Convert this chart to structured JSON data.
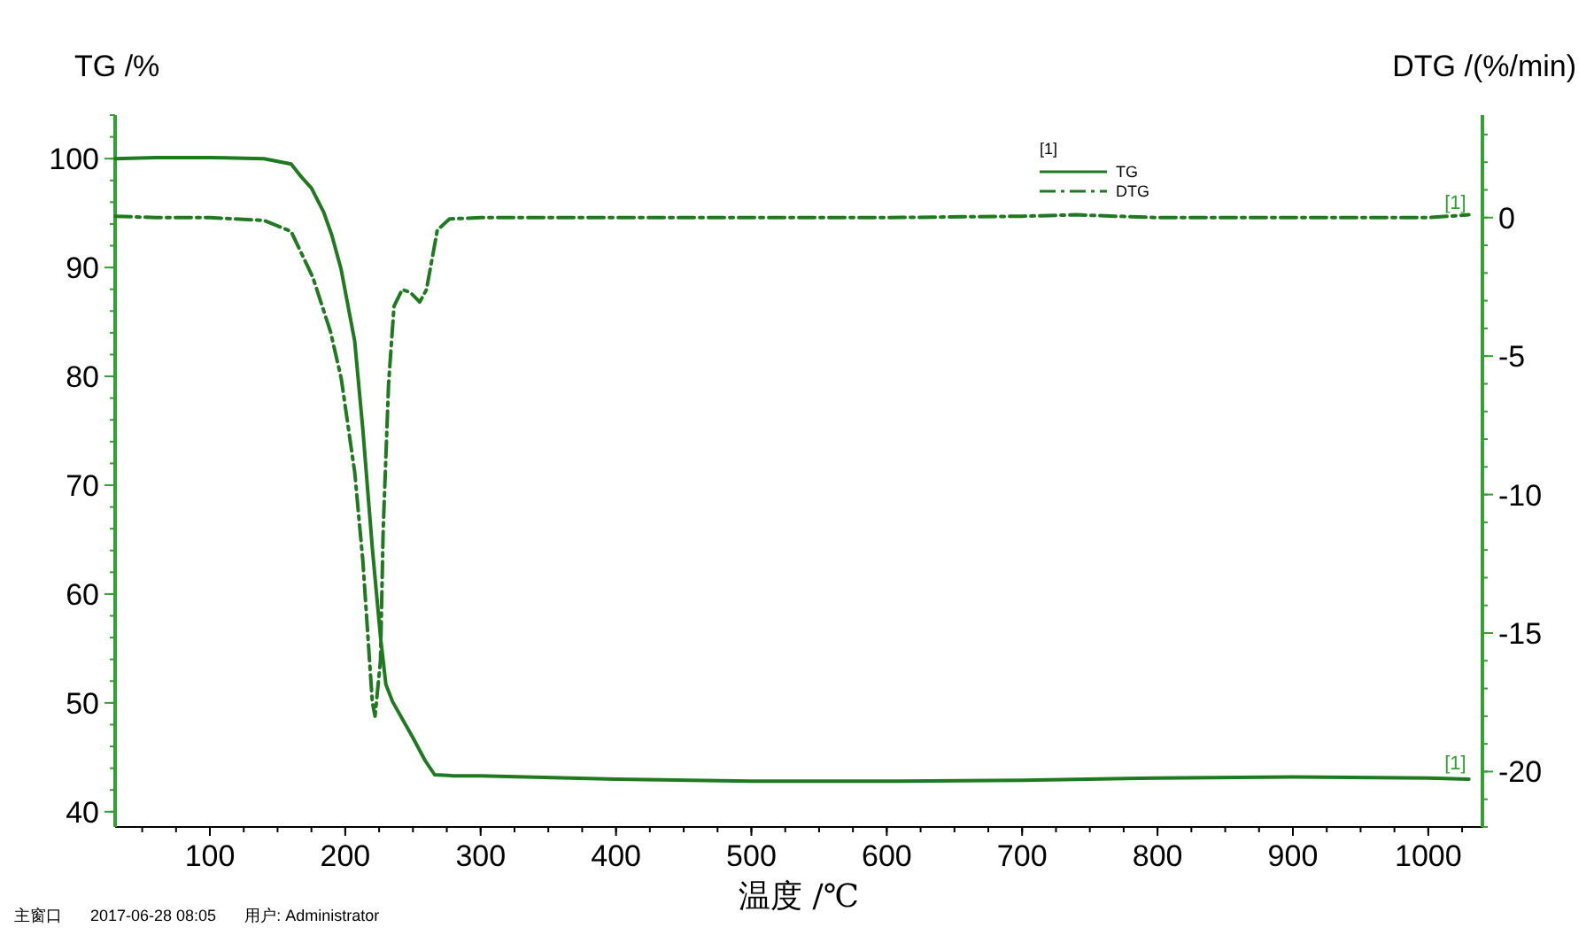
{
  "chart_data": {
    "type": "line",
    "xlabel": "温度 /℃",
    "ylabel": "TG /%",
    "y2label": "DTG /(%/min)",
    "legend_title": "[1]",
    "legend": "top right",
    "xlim": [
      30,
      1040
    ],
    "ylim": [
      38.6,
      104
    ],
    "y2lim": [
      -22,
      3.7
    ],
    "xticks": [
      100,
      200,
      300,
      400,
      500,
      600,
      700,
      800,
      900,
      1000
    ],
    "yticks": [
      40,
      50,
      60,
      70,
      80,
      90,
      100
    ],
    "y2ticks": [
      -20,
      -15,
      -10,
      -5,
      0
    ],
    "series": [
      {
        "name": "TG",
        "color": "#1f7a1f",
        "line_style": "solid",
        "x": [
          30,
          60,
          100,
          140,
          160,
          167,
          175,
          184,
          190,
          197,
          207,
          213,
          220,
          226,
          230,
          235,
          250,
          259,
          266,
          280,
          300,
          400,
          500,
          600,
          700,
          800,
          900,
          1000,
          1030
        ],
        "values": [
          100.0,
          100.1,
          100.1,
          100.0,
          99.5,
          98.4,
          97.3,
          95.1,
          93.0,
          89.8,
          83.2,
          75.1,
          64.2,
          56.1,
          51.7,
          50.1,
          46.8,
          44.7,
          43.4,
          43.3,
          43.3,
          43.0,
          42.8,
          42.8,
          42.9,
          43.1,
          43.2,
          43.1,
          43.0
        ]
      },
      {
        "name": "DTG",
        "color": "#1f7a1f",
        "line_style": "dashdot",
        "axis": "y2",
        "x": [
          30,
          60,
          100,
          140,
          160,
          176,
          189,
          197,
          207,
          213,
          220,
          222,
          226,
          228,
          232,
          236,
          242,
          248,
          255,
          260,
          268,
          277,
          300,
          400,
          500,
          600,
          700,
          740,
          800,
          900,
          1000,
          1030
        ],
        "values": [
          0.05,
          0.0,
          0.0,
          -0.1,
          -0.5,
          -2.15,
          -4.1,
          -5.8,
          -9.2,
          -12.4,
          -17.5,
          -18.0,
          -16.0,
          -11.3,
          -6.0,
          -3.2,
          -2.6,
          -2.7,
          -3.05,
          -2.6,
          -0.45,
          -0.05,
          0.0,
          0.0,
          0.0,
          0.0,
          0.05,
          0.1,
          0.0,
          0.0,
          0.0,
          0.1
        ]
      }
    ],
    "annotations": [
      {
        "text": "[1]",
        "x": 1020,
        "y": 43.1
      },
      {
        "text": "[1]",
        "x": 1020,
        "y": 94.6
      },
      "主窗口",
      "2017-06-28 08:05",
      "用户: Administrator"
    ]
  }
}
